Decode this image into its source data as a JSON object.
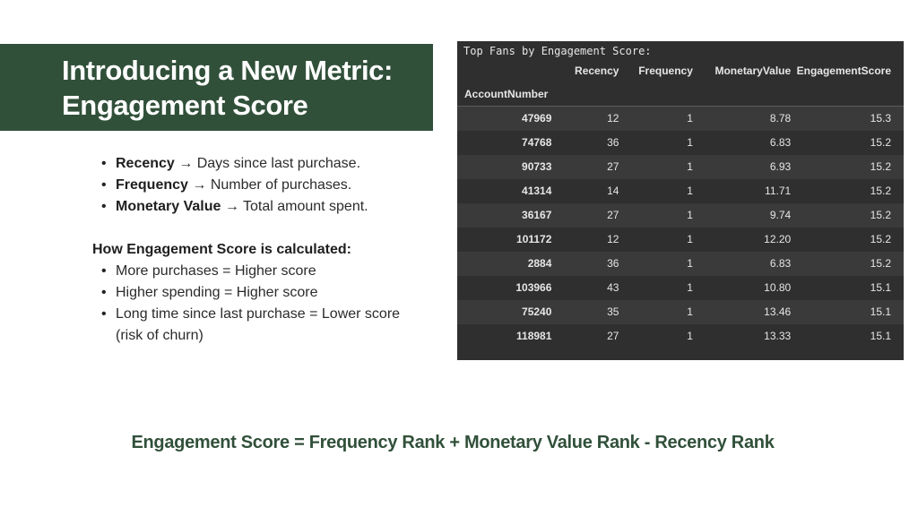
{
  "banner": {
    "title_line1": "Introducing a New Metric:",
    "title_line2": "Engagement Score",
    "color": "#31503a"
  },
  "definitions": [
    {
      "term": "Recency",
      "desc": " → Days since last purchase."
    },
    {
      "term": "Frequency",
      "desc": " → Number of purchases."
    },
    {
      "term": "Monetary Value",
      "desc": " → Total amount spent."
    }
  ],
  "calculation": {
    "heading": "How Engagement Score is calculated:",
    "items": [
      "More purchases = Higher score",
      "Higher spending = Higher score",
      "Long time since last purchase = Lower score (risk of churn)"
    ]
  },
  "dataframe": {
    "caption": "Top Fans by Engagement Score:",
    "columns": [
      "Recency",
      "Frequency",
      "MonetaryValue",
      "EngagementScore"
    ],
    "index_name": "AccountNumber",
    "rows": [
      {
        "account": "47969",
        "recency": "12",
        "frequency": "1",
        "monetary": "8.78",
        "score": "15.3"
      },
      {
        "account": "74768",
        "recency": "36",
        "frequency": "1",
        "monetary": "6.83",
        "score": "15.2"
      },
      {
        "account": "90733",
        "recency": "27",
        "frequency": "1",
        "monetary": "6.93",
        "score": "15.2"
      },
      {
        "account": "41314",
        "recency": "14",
        "frequency": "1",
        "monetary": "11.71",
        "score": "15.2"
      },
      {
        "account": "36167",
        "recency": "27",
        "frequency": "1",
        "monetary": "9.74",
        "score": "15.2"
      },
      {
        "account": "101172",
        "recency": "12",
        "frequency": "1",
        "monetary": "12.20",
        "score": "15.2"
      },
      {
        "account": "2884",
        "recency": "36",
        "frequency": "1",
        "monetary": "6.83",
        "score": "15.2"
      },
      {
        "account": "103966",
        "recency": "43",
        "frequency": "1",
        "monetary": "10.80",
        "score": "15.1"
      },
      {
        "account": "75240",
        "recency": "35",
        "frequency": "1",
        "monetary": "13.46",
        "score": "15.1"
      },
      {
        "account": "118981",
        "recency": "27",
        "frequency": "1",
        "monetary": "13.33",
        "score": "15.1"
      }
    ]
  },
  "formula": "Engagement Score = Frequency Rank + Monetary Value Rank - Recency Rank"
}
